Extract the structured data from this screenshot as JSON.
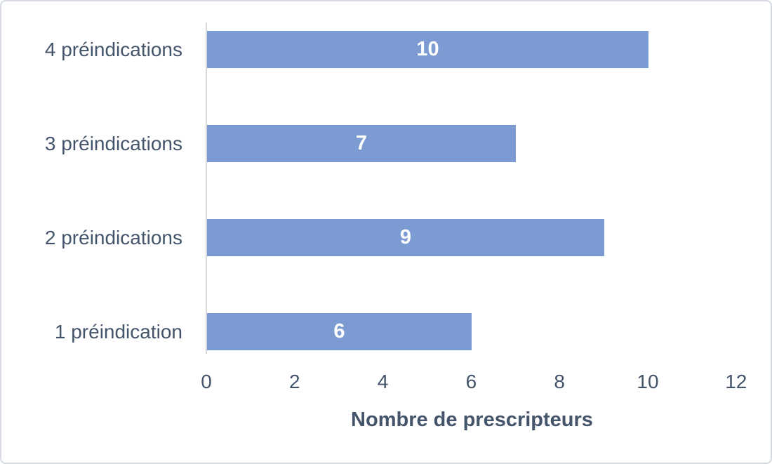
{
  "chart_data": {
    "type": "bar",
    "orientation": "horizontal",
    "categories": [
      "4 préindications",
      "3 préindications",
      "2 préindications",
      "1 préindication"
    ],
    "values": [
      10,
      7,
      9,
      6
    ],
    "data_labels": [
      "10",
      "7",
      "9",
      "6"
    ],
    "title": "",
    "xlabel": "Nombre de prescripteurs",
    "ylabel": "",
    "xlim": [
      0,
      12
    ],
    "xticks": [
      0,
      2,
      4,
      6,
      8,
      10,
      12
    ],
    "xtick_labels": [
      "0",
      "2",
      "4",
      "6",
      "8",
      "10",
      "12"
    ],
    "grid": false,
    "legend": false,
    "colors": {
      "bar_fill": "#7d9bd3",
      "text": "#44546a",
      "data_label": "#ffffff",
      "axis_line": "#d9d9d9",
      "frame_border": "#d6dbe3",
      "background": "#ffffff"
    }
  }
}
